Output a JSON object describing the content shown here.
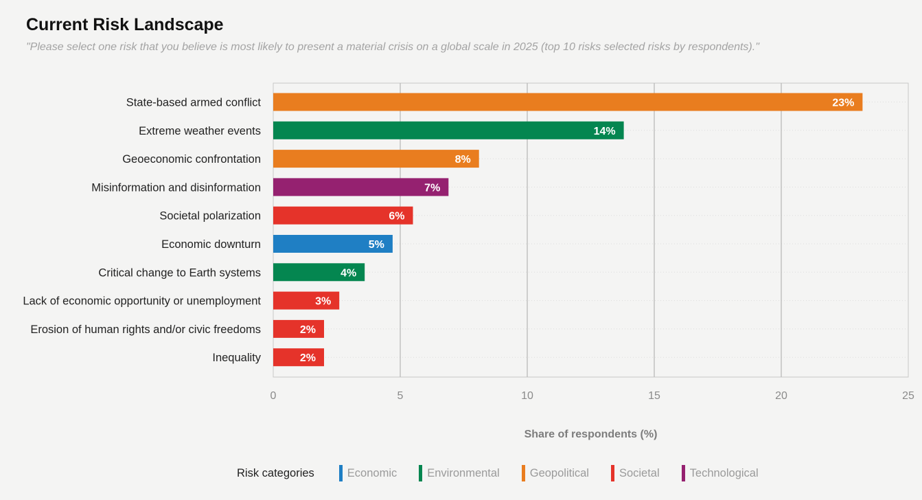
{
  "chart_data": {
    "type": "bar",
    "orientation": "horizontal",
    "title": "Current Risk Landscape",
    "subtitle": "\"Please select one risk that you believe is most likely to present a material crisis on a global scale in 2025 (top 10 risks selected risks by respondents).\"",
    "xlabel": "Share of respondents (%)",
    "ylabel": "",
    "xlim": [
      0,
      25
    ],
    "xticks": [
      0,
      5,
      10,
      15,
      20,
      25
    ],
    "grid": true,
    "categories": [
      "State-based armed conflict",
      "Extreme weather events",
      "Geoeconomic confrontation",
      "Misinformation and disinformation",
      "Societal polarization",
      "Economic downturn",
      "Critical change to Earth systems",
      "Lack of economic opportunity or unemployment",
      "Erosion of human rights and/or civic freedoms",
      "Inequality"
    ],
    "values": [
      23.2,
      13.8,
      8.1,
      6.9,
      5.5,
      4.7,
      3.6,
      2.6,
      2.0,
      2.0
    ],
    "value_labels": [
      "23%",
      "14%",
      "8%",
      "7%",
      "6%",
      "5%",
      "4%",
      "3%",
      "2%",
      "2%"
    ],
    "bar_categories": [
      "Geopolitical",
      "Environmental",
      "Geopolitical",
      "Technological",
      "Societal",
      "Economic",
      "Environmental",
      "Societal",
      "Societal",
      "Societal"
    ],
    "legend_position": "bottom"
  },
  "legend": {
    "title": "Risk categories",
    "items": [
      {
        "label": "Economic",
        "color": "#1f7fc4"
      },
      {
        "label": "Environmental",
        "color": "#048650"
      },
      {
        "label": "Geopolitical",
        "color": "#e97d1f"
      },
      {
        "label": "Societal",
        "color": "#e5332a"
      },
      {
        "label": "Technological",
        "color": "#952170"
      }
    ]
  }
}
